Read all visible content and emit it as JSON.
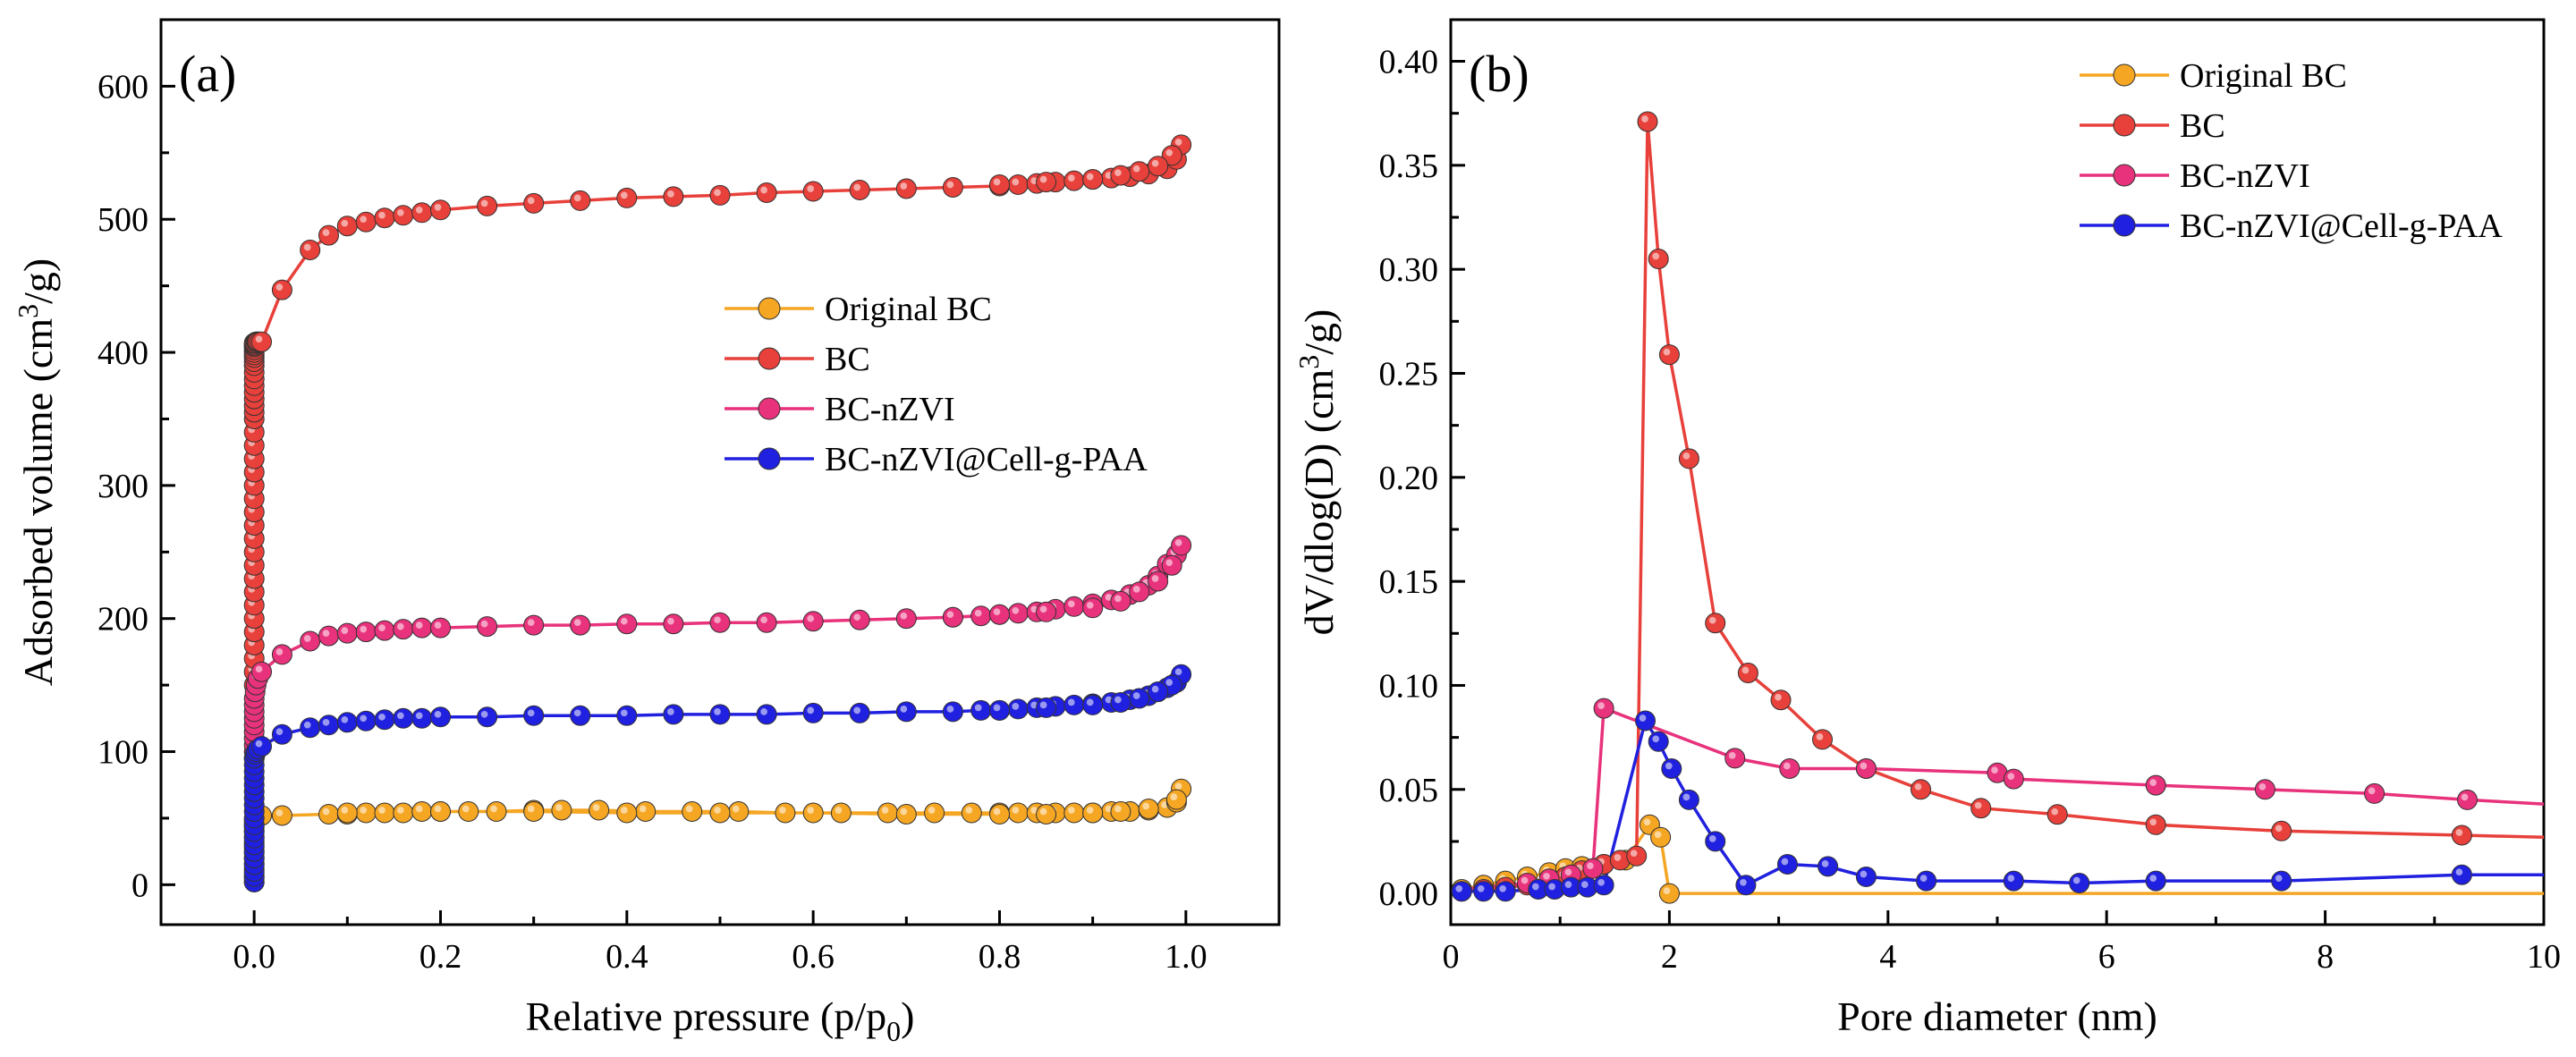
{
  "chart_data": [
    {
      "type": "scatter",
      "panel_label": "(a)",
      "xlabel_main": "Relative pressure (p/p",
      "xlabel_sub": "0",
      "xlabel_end": ")",
      "ylabel_main": "Adsorbed volume (cm",
      "ylabel_sup": "3",
      "ylabel_end": "/g)",
      "xlim": [
        -0.1,
        1.1
      ],
      "ylim": [
        -30,
        650
      ],
      "xticks": [
        0.0,
        0.2,
        0.4,
        0.6,
        0.8,
        1.0
      ],
      "xtick_labels": [
        "0.0",
        "0.2",
        "0.4",
        "0.6",
        "0.8",
        "1.0"
      ],
      "yticks": [
        0,
        100,
        200,
        300,
        400,
        500,
        600
      ],
      "ytick_labels": [
        "0",
        "100",
        "200",
        "300",
        "400",
        "500",
        "600"
      ],
      "legend_position": "center-right",
      "series": [
        {
          "name": "Original BC",
          "color": "#F5A623",
          "x": [
            0.0,
            0.0,
            0.0,
            0.0,
            0.0,
            0.0,
            0.0,
            0.0,
            0.0,
            0.0,
            0.0,
            0.0,
            0.0,
            0.0,
            0.0,
            0.001,
            0.002,
            0.004,
            0.008,
            0.03,
            0.08,
            0.1,
            0.12,
            0.14,
            0.16,
            0.18,
            0.2,
            0.23,
            0.26,
            0.3,
            0.33,
            0.37,
            0.42,
            0.47,
            0.52,
            0.57,
            0.63,
            0.68,
            0.73,
            0.77,
            0.8,
            0.82,
            0.84,
            0.86,
            0.88,
            0.9,
            0.92,
            0.94,
            0.96,
            0.98,
            0.99,
            0.995,
            0.99,
            0.96,
            0.93,
            0.9,
            0.85,
            0.8,
            0.7,
            0.6,
            0.5,
            0.4,
            0.3,
            0.2,
            0.1
          ],
          "y": [
            2,
            5,
            8,
            12,
            16,
            20,
            24,
            28,
            32,
            36,
            40,
            43,
            45,
            47,
            49,
            50,
            51,
            51,
            52,
            52,
            53,
            53,
            54,
            54,
            54,
            55,
            55,
            55,
            55,
            56,
            56,
            56,
            55,
            55,
            55,
            54,
            54,
            54,
            54,
            54,
            54,
            54,
            54,
            54,
            54,
            54,
            55,
            55,
            56,
            58,
            62,
            72,
            64,
            57,
            55,
            54,
            53,
            53,
            53,
            54,
            54,
            54,
            55,
            55,
            54
          ]
        },
        {
          "name": "BC",
          "color": "#E8403A",
          "x": [
            0.0,
            0.0,
            0.0,
            0.0,
            0.0,
            0.0,
            0.0,
            0.0,
            0.0,
            0.0,
            0.0,
            0.0,
            0.0,
            0.0,
            0.0,
            0.0,
            0.0,
            0.0,
            0.0,
            0.0,
            0.0,
            0.0,
            0.0,
            0.0,
            0.0,
            0.0,
            0.0,
            0.0,
            0.0,
            0.0,
            0.0,
            0.0,
            0.0,
            0.0,
            0.0,
            0.0,
            0.0,
            0.0,
            0.001,
            0.002,
            0.003,
            0.004,
            0.006,
            0.008,
            0.03,
            0.06,
            0.08,
            0.1,
            0.12,
            0.14,
            0.16,
            0.18,
            0.2,
            0.25,
            0.3,
            0.35,
            0.4,
            0.45,
            0.5,
            0.55,
            0.6,
            0.65,
            0.7,
            0.75,
            0.8,
            0.82,
            0.84,
            0.86,
            0.88,
            0.9,
            0.92,
            0.94,
            0.96,
            0.98,
            0.99,
            0.995,
            0.985,
            0.97,
            0.95,
            0.93,
            0.9,
            0.85,
            0.8
          ],
          "y": [
            150,
            160,
            170,
            180,
            190,
            200,
            210,
            220,
            230,
            240,
            250,
            260,
            270,
            280,
            290,
            300,
            310,
            320,
            330,
            340,
            350,
            355,
            360,
            365,
            370,
            375,
            380,
            385,
            390,
            393,
            396,
            398,
            400,
            402,
            404,
            405,
            406,
            407,
            407,
            408,
            408,
            408,
            408,
            408,
            447,
            477,
            488,
            495,
            498,
            501,
            503,
            505,
            507,
            510,
            512,
            514,
            516,
            517,
            518,
            520,
            521,
            522,
            523,
            524,
            525,
            526,
            527,
            528,
            529,
            530,
            531,
            532,
            534,
            538,
            545,
            556,
            548,
            540,
            536,
            533,
            530,
            528,
            526
          ]
        },
        {
          "name": "BC-nZVI",
          "color": "#E8327C",
          "x": [
            0.0,
            0.0,
            0.0,
            0.0,
            0.0,
            0.0,
            0.0,
            0.0,
            0.0,
            0.0,
            0.001,
            0.002,
            0.004,
            0.008,
            0.03,
            0.06,
            0.08,
            0.1,
            0.12,
            0.14,
            0.16,
            0.18,
            0.2,
            0.25,
            0.3,
            0.35,
            0.4,
            0.45,
            0.5,
            0.55,
            0.6,
            0.65,
            0.7,
            0.75,
            0.78,
            0.8,
            0.82,
            0.84,
            0.86,
            0.88,
            0.9,
            0.92,
            0.94,
            0.96,
            0.97,
            0.98,
            0.99,
            0.995,
            0.985,
            0.97,
            0.95,
            0.93,
            0.9,
            0.85,
            0.8,
            0.75
          ],
          "y": [
            95,
            100,
            105,
            110,
            115,
            120,
            125,
            130,
            135,
            140,
            145,
            150,
            155,
            160,
            173,
            183,
            187,
            189,
            190,
            191,
            192,
            193,
            193,
            194,
            195,
            195,
            196,
            196,
            197,
            197,
            198,
            199,
            200,
            201,
            202,
            203,
            204,
            205,
            207,
            209,
            211,
            214,
            218,
            225,
            232,
            241,
            248,
            255,
            240,
            228,
            220,
            213,
            208,
            205,
            203,
            201
          ]
        },
        {
          "name": "BC-nZVI@Cell-g-PAA",
          "color": "#2020E0",
          "x": [
            0.0,
            0.0,
            0.0,
            0.0,
            0.0,
            0.0,
            0.0,
            0.0,
            0.0,
            0.0,
            0.0,
            0.0,
            0.0,
            0.0,
            0.0,
            0.0,
            0.0,
            0.0,
            0.0,
            0.0,
            0.001,
            0.002,
            0.004,
            0.008,
            0.03,
            0.06,
            0.08,
            0.1,
            0.12,
            0.14,
            0.16,
            0.18,
            0.2,
            0.25,
            0.3,
            0.35,
            0.4,
            0.45,
            0.5,
            0.55,
            0.6,
            0.65,
            0.7,
            0.75,
            0.78,
            0.8,
            0.82,
            0.84,
            0.86,
            0.88,
            0.9,
            0.92,
            0.94,
            0.96,
            0.97,
            0.98,
            0.99,
            0.995,
            0.985,
            0.97,
            0.95,
            0.93,
            0.9,
            0.85,
            0.8
          ],
          "y": [
            2,
            6,
            10,
            15,
            20,
            25,
            30,
            35,
            40,
            45,
            50,
            55,
            60,
            65,
            70,
            75,
            80,
            85,
            90,
            95,
            98,
            100,
            102,
            104,
            113,
            118,
            120,
            122,
            123,
            124,
            125,
            125,
            126,
            126,
            127,
            127,
            127,
            128,
            128,
            128,
            129,
            129,
            130,
            130,
            131,
            131,
            132,
            133,
            134,
            135,
            136,
            137,
            139,
            142,
            145,
            148,
            152,
            158,
            150,
            145,
            140,
            137,
            135,
            133,
            131
          ]
        }
      ]
    },
    {
      "type": "line",
      "panel_label": "(b)",
      "xlabel": "Pore diameter (nm)",
      "ylabel_main": "dV/dlog(D) (cm",
      "ylabel_sup": "3",
      "ylabel_end": "/g)",
      "xlim": [
        0,
        10
      ],
      "ylim": [
        -0.015,
        0.42
      ],
      "xticks": [
        0,
        2,
        4,
        6,
        8,
        10
      ],
      "xtick_labels": [
        "0",
        "2",
        "4",
        "6",
        "8",
        "10"
      ],
      "yticks": [
        0.0,
        0.05,
        0.1,
        0.15,
        0.2,
        0.25,
        0.3,
        0.35,
        0.4
      ],
      "ytick_labels": [
        "0.00",
        "0.05",
        "0.10",
        "0.15",
        "0.20",
        "0.25",
        "0.30",
        "0.35",
        "0.40"
      ],
      "legend_position": "top-right",
      "series": [
        {
          "name": "Original BC",
          "color": "#F5A623",
          "x": [
            0.1,
            0.3,
            0.5,
            0.7,
            0.9,
            1.05,
            1.2,
            1.4,
            1.6,
            1.82,
            1.92,
            2.0,
            10.0
          ],
          "y": [
            0.002,
            0.004,
            0.006,
            0.008,
            0.01,
            0.012,
            0.013,
            0.014,
            0.016,
            0.033,
            0.027,
            0.0,
            0.0
          ],
          "markers": [
            true,
            true,
            true,
            true,
            true,
            true,
            true,
            true,
            true,
            true,
            true,
            true,
            false
          ]
        },
        {
          "name": "BC",
          "color": "#E8403A",
          "x": [
            0.1,
            0.3,
            0.5,
            0.7,
            0.9,
            1.05,
            1.2,
            1.4,
            1.55,
            1.7,
            1.8,
            1.9,
            2.0,
            2.18,
            2.42,
            2.72,
            3.02,
            3.4,
            3.8,
            4.3,
            4.85,
            5.55,
            6.45,
            7.6,
            9.25,
            10.0
          ],
          "y": [
            0.001,
            0.002,
            0.003,
            0.004,
            0.006,
            0.008,
            0.011,
            0.014,
            0.016,
            0.018,
            0.371,
            0.305,
            0.259,
            0.209,
            0.13,
            0.106,
            0.093,
            0.074,
            0.06,
            0.05,
            0.041,
            0.038,
            0.033,
            0.03,
            0.028,
            0.027
          ],
          "markers": [
            true,
            true,
            true,
            true,
            true,
            true,
            true,
            true,
            true,
            true,
            true,
            true,
            true,
            true,
            true,
            true,
            true,
            true,
            true,
            true,
            true,
            true,
            true,
            true,
            true,
            false
          ]
        },
        {
          "name": "BC-nZVI",
          "color": "#E8327C",
          "x": [
            0.1,
            0.3,
            0.5,
            0.7,
            0.9,
            1.1,
            1.3,
            1.4,
            2.6,
            3.1,
            3.8,
            5.0,
            5.15,
            6.45,
            7.45,
            8.45,
            9.3,
            10.0
          ],
          "y": [
            0.002,
            0.003,
            0.004,
            0.005,
            0.007,
            0.009,
            0.012,
            0.089,
            0.065,
            0.06,
            0.06,
            0.058,
            0.055,
            0.052,
            0.05,
            0.048,
            0.045,
            0.043
          ],
          "markers": [
            false,
            false,
            false,
            true,
            true,
            true,
            true,
            true,
            true,
            true,
            true,
            true,
            true,
            true,
            true,
            true,
            true,
            false
          ]
        },
        {
          "name": "BC-nZVI@Cell-g-PAA",
          "color": "#2020E0",
          "x": [
            0.1,
            0.3,
            0.5,
            0.8,
            0.95,
            1.1,
            1.25,
            1.4,
            1.78,
            1.9,
            2.02,
            2.18,
            2.42,
            2.7,
            3.08,
            3.45,
            3.8,
            4.35,
            5.15,
            5.75,
            6.45,
            7.6,
            9.25,
            10.0
          ],
          "y": [
            0.001,
            0.001,
            0.001,
            0.002,
            0.002,
            0.003,
            0.003,
            0.004,
            0.083,
            0.073,
            0.06,
            0.045,
            0.025,
            0.004,
            0.014,
            0.013,
            0.008,
            0.006,
            0.006,
            0.005,
            0.006,
            0.006,
            0.009,
            0.009
          ],
          "markers": [
            true,
            true,
            true,
            true,
            true,
            true,
            true,
            true,
            true,
            true,
            true,
            true,
            true,
            true,
            true,
            true,
            true,
            true,
            true,
            true,
            true,
            true,
            true,
            false
          ]
        }
      ]
    }
  ]
}
